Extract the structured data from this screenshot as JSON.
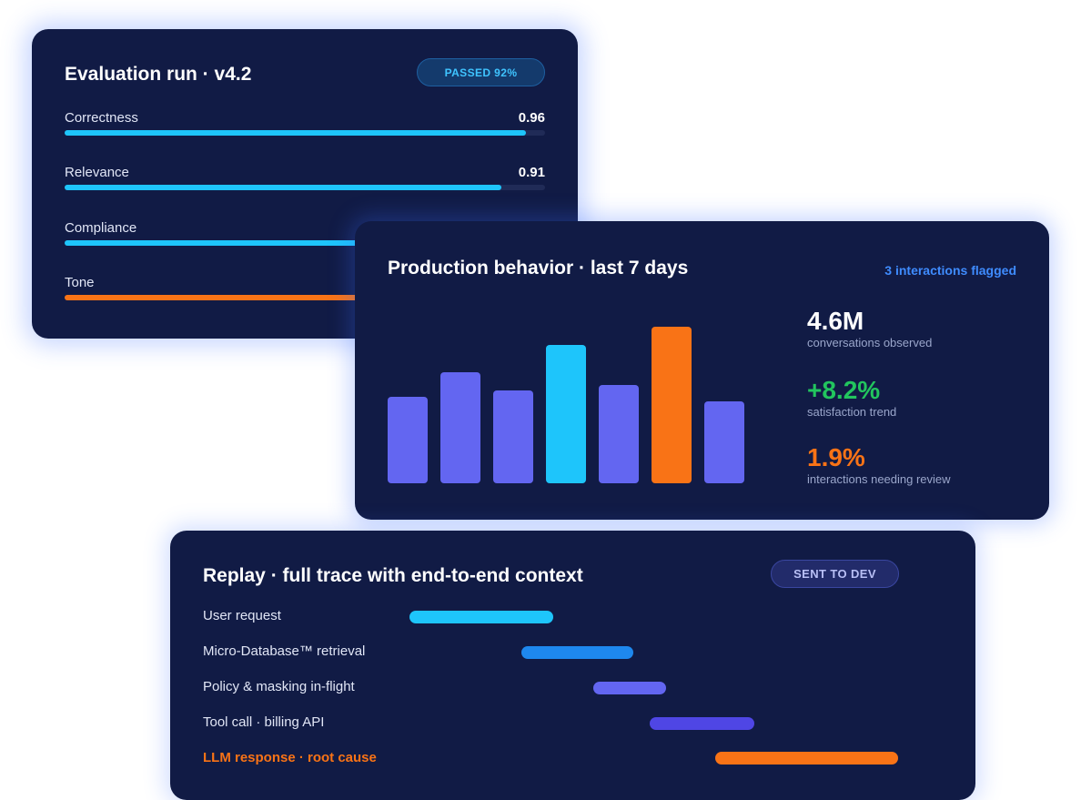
{
  "evaluation": {
    "title": "Evaluation run · v4.2",
    "badge": "PASSED 92%",
    "metrics": [
      {
        "label": "Correctness",
        "value": "0.96",
        "fraction": 0.96,
        "color": "#1ec5fb"
      },
      {
        "label": "Relevance",
        "value": "0.91",
        "fraction": 0.91,
        "color": "#1ec5fb"
      },
      {
        "label": "Compliance",
        "value": "",
        "fraction": 0.95,
        "color": "#1ec5fb"
      },
      {
        "label": "Tone",
        "value": "",
        "fraction": 0.86,
        "color": "#f97316"
      }
    ]
  },
  "production": {
    "title": "Production behavior · last 7 days",
    "flag_link": "3 interactions flagged",
    "bars": [
      {
        "value": 95,
        "color": "#6366f1"
      },
      {
        "value": 122,
        "color": "#6366f1"
      },
      {
        "value": 102,
        "color": "#6366f1"
      },
      {
        "value": 152,
        "color": "#1ec5fb"
      },
      {
        "value": 108,
        "color": "#6366f1"
      },
      {
        "value": 172,
        "color": "#f97316"
      },
      {
        "value": 90,
        "color": "#6366f1"
      }
    ],
    "stats": [
      {
        "value": "4.6M",
        "caption": "conversations observed",
        "color": "#ffffff"
      },
      {
        "value": "+8.2%",
        "caption": "satisfaction trend",
        "color": "#22c55e"
      },
      {
        "value": "1.9%",
        "caption": "interactions needing review",
        "color": "#f97316"
      }
    ]
  },
  "replay": {
    "title": "Replay · full trace with end-to-end context",
    "badge": "SENT TO DEV",
    "steps": [
      {
        "label": "User request",
        "start": 0.0,
        "end": 0.294,
        "color": "#1ec5fb",
        "root_cause": false
      },
      {
        "label": "Micro-Database™ retrieval",
        "start": 0.229,
        "end": 0.458,
        "color": "#1e88ee",
        "root_cause": false
      },
      {
        "label": "Policy & masking in-flight",
        "start": 0.377,
        "end": 0.525,
        "color": "#6366f1",
        "root_cause": false
      },
      {
        "label": "Tool call · billing API",
        "start": 0.492,
        "end": 0.706,
        "color": "#4f46e5",
        "root_cause": false
      },
      {
        "label": "LLM response · root cause",
        "start": 0.625,
        "end": 1.0,
        "color": "#f97316",
        "root_cause": true
      }
    ]
  }
}
